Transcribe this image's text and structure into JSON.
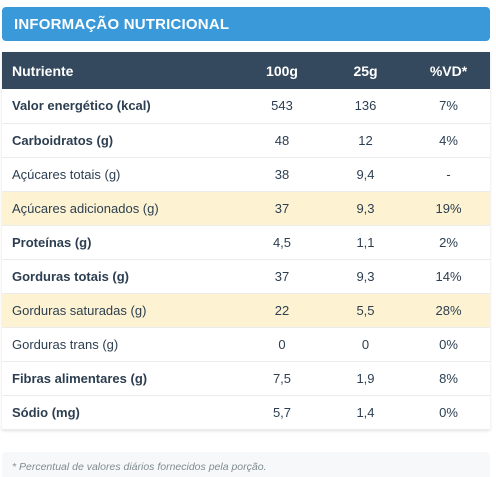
{
  "header": {
    "title": "INFORMAÇÃO NUTRICIONAL"
  },
  "table": {
    "columns": [
      "Nutriente",
      "100g",
      "25g",
      "%VD*"
    ],
    "rows": [
      {
        "name": "Valor energético (kcal)",
        "per100g": "543",
        "per25g": "136",
        "vd": "7%",
        "bold": true,
        "highlight": false
      },
      {
        "name": "Carboidratos (g)",
        "per100g": "48",
        "per25g": "12",
        "vd": "4%",
        "bold": true,
        "highlight": false
      },
      {
        "name": "Açúcares totais (g)",
        "per100g": "38",
        "per25g": "9,4",
        "vd": "-",
        "bold": false,
        "highlight": false
      },
      {
        "name": "Açúcares adicionados (g)",
        "per100g": "37",
        "per25g": "9,3",
        "vd": "19%",
        "bold": false,
        "highlight": true
      },
      {
        "name": "Proteínas (g)",
        "per100g": "4,5",
        "per25g": "1,1",
        "vd": "2%",
        "bold": true,
        "highlight": false
      },
      {
        "name": "Gorduras totais (g)",
        "per100g": "37",
        "per25g": "9,3",
        "vd": "14%",
        "bold": true,
        "highlight": false
      },
      {
        "name": "Gorduras saturadas (g)",
        "per100g": "22",
        "per25g": "5,5",
        "vd": "28%",
        "bold": false,
        "highlight": true
      },
      {
        "name": "Gorduras trans (g)",
        "per100g": "0",
        "per25g": "0",
        "vd": "0%",
        "bold": false,
        "highlight": false
      },
      {
        "name": "Fibras alimentares (g)",
        "per100g": "7,5",
        "per25g": "1,9",
        "vd": "8%",
        "bold": true,
        "highlight": false
      },
      {
        "name": "Sódio (mg)",
        "per100g": "5,7",
        "per25g": "1,4",
        "vd": "0%",
        "bold": true,
        "highlight": false
      }
    ]
  },
  "footnote": "* Percentual de valores diários fornecidos pela porção.",
  "colors": {
    "header_bg": "#3a9ad9",
    "table_header_bg": "#34495e",
    "highlight_row_bg": "#fdf3d2"
  }
}
